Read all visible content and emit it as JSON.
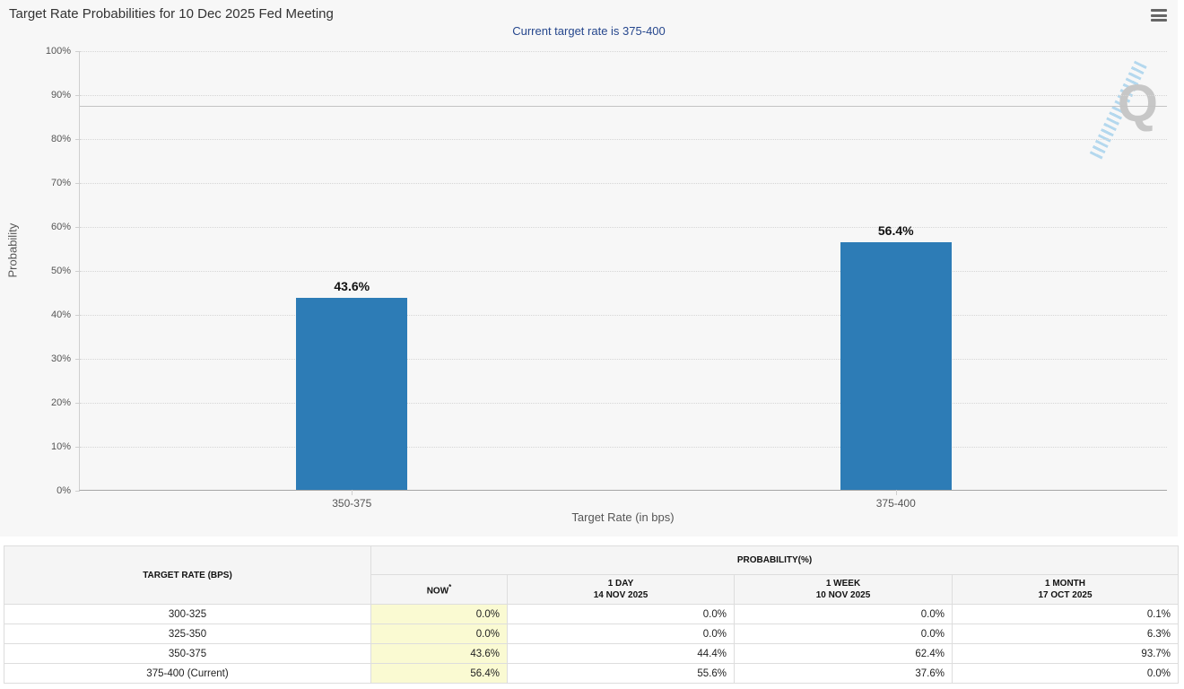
{
  "chart": {
    "title": "Target Rate Probabilities for 10 Dec 2025 Fed Meeting",
    "subtitle": "Current target rate is 375-400",
    "watermark_letter": "Q"
  },
  "chart_data": {
    "type": "bar",
    "title": "Target Rate Probabilities for 10 Dec 2025 Fed Meeting",
    "subtitle": "Current target rate is 375-400",
    "categories": [
      "350-375",
      "375-400"
    ],
    "values": [
      43.6,
      56.4
    ],
    "data_labels": [
      "43.6%",
      "56.4%"
    ],
    "xlabel": "Target Rate (in bps)",
    "ylabel": "Probability",
    "ylim": [
      0,
      100
    ],
    "ytick_step": 10,
    "ytick_suffix": "%",
    "grid": "dotted-horizontal",
    "legend": "none",
    "bar_color": "#2d7cb6",
    "reference_line_y": 87.5
  },
  "table": {
    "header": {
      "target_rate": "TARGET RATE (BPS)",
      "probability_group": "PROBABILITY(%)",
      "now": "NOW",
      "now_note_marker": "*",
      "columns": [
        {
          "label": "1 DAY",
          "date": "14 NOV 2025"
        },
        {
          "label": "1 WEEK",
          "date": "10 NOV 2025"
        },
        {
          "label": "1 MONTH",
          "date": "17 OCT 2025"
        }
      ]
    },
    "rows": [
      {
        "target": "300-325",
        "now": "0.0%",
        "day": "0.0%",
        "week": "0.0%",
        "month": "0.1%"
      },
      {
        "target": "325-350",
        "now": "0.0%",
        "day": "0.0%",
        "week": "0.0%",
        "month": "6.3%"
      },
      {
        "target": "350-375",
        "now": "43.6%",
        "day": "44.4%",
        "week": "62.4%",
        "month": "93.7%"
      },
      {
        "target": "375-400 (Current)",
        "now": "56.4%",
        "day": "55.6%",
        "week": "37.6%",
        "month": "0.0%"
      }
    ]
  },
  "colors": {
    "bar": "#2d7cb6",
    "subtitle": "#26478d",
    "now_column_highlight": "#fafad2",
    "chart_background": "#f7f7f7"
  }
}
